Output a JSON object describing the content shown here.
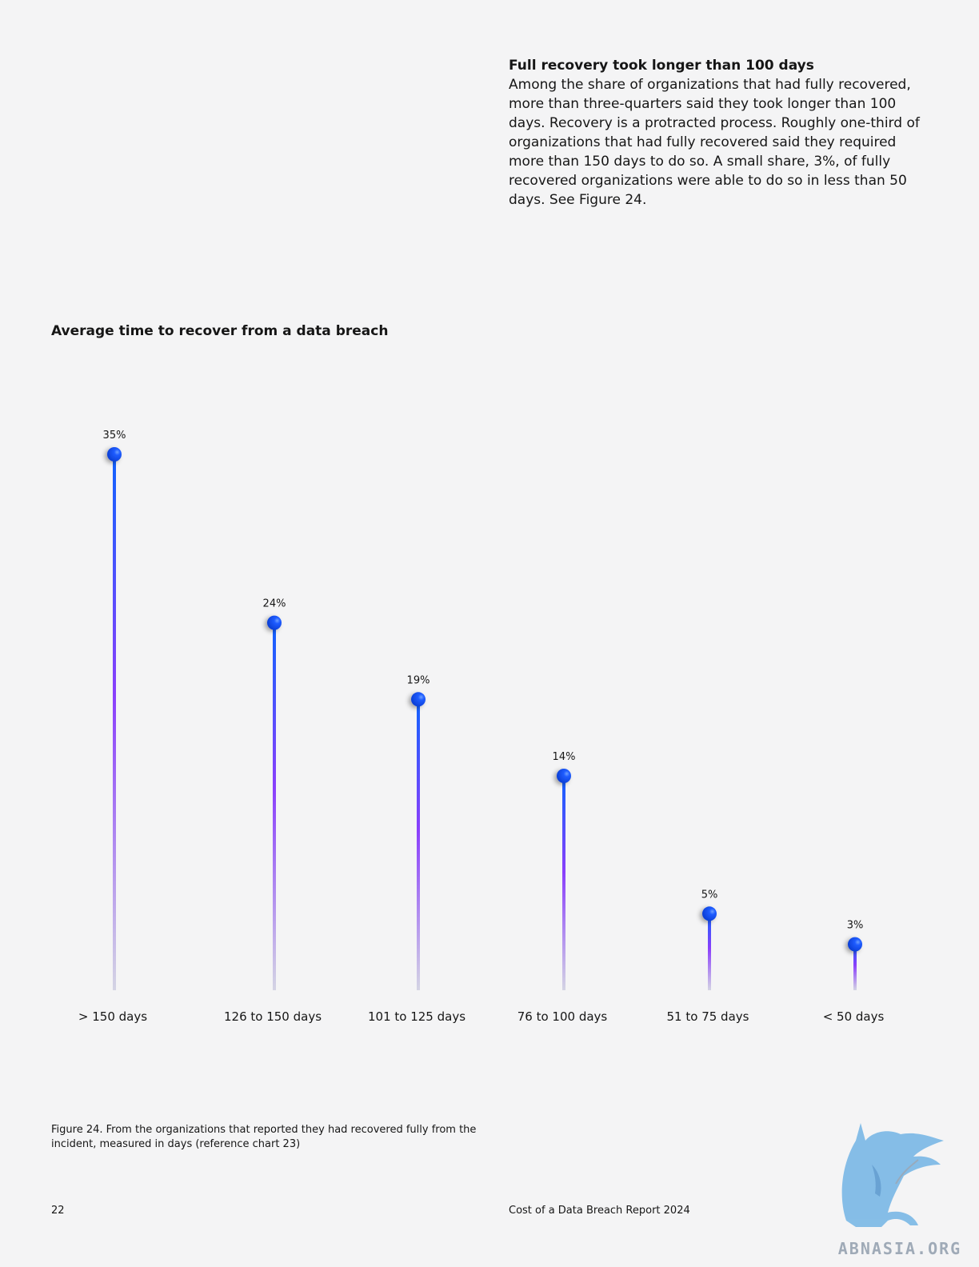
{
  "intro": {
    "heading": "Full recovery took longer than 100 days",
    "body": "Among the share of organizations that had fully recovered, more than three-quarters said they took longer than 100 days. Recovery is a protracted process. Roughly one-third of organizations that had fully recovered said they required more than 150 days to do so. A small share, 3%, of fully recovered organizations were able to do so in less than 50 days. See Figure 24."
  },
  "chart_data": {
    "type": "lollipop",
    "title": "Average time to recover from a data breach",
    "categories": [
      "> 150 days",
      "126 to 150 days",
      "101 to 125 days",
      "76 to 100 days",
      "51 to 75 days",
      "< 50 days"
    ],
    "values": [
      35,
      24,
      19,
      14,
      5,
      3
    ],
    "value_labels": [
      "35%",
      "24%",
      "19%",
      "14%",
      "5%",
      "3%"
    ],
    "unit": "%",
    "ylim": [
      0,
      35
    ],
    "grid": false,
    "colors": {
      "dot": "#0f62fe",
      "stem_top": "#0f62fe",
      "stem_mid": "#8a3ffc",
      "stem_bottom": "#d4d4e4"
    }
  },
  "caption": "Figure 24. From the organizations that reported they had recovered fully from the incident, measured in days (reference chart 23)",
  "footer": {
    "page_number": "22",
    "report_title": "Cost of a Data Breach Report 2024"
  },
  "watermark": {
    "text": "ABNASIA.ORG",
    "icon": "griffin-logo-icon",
    "color": "#7ab8e6"
  }
}
